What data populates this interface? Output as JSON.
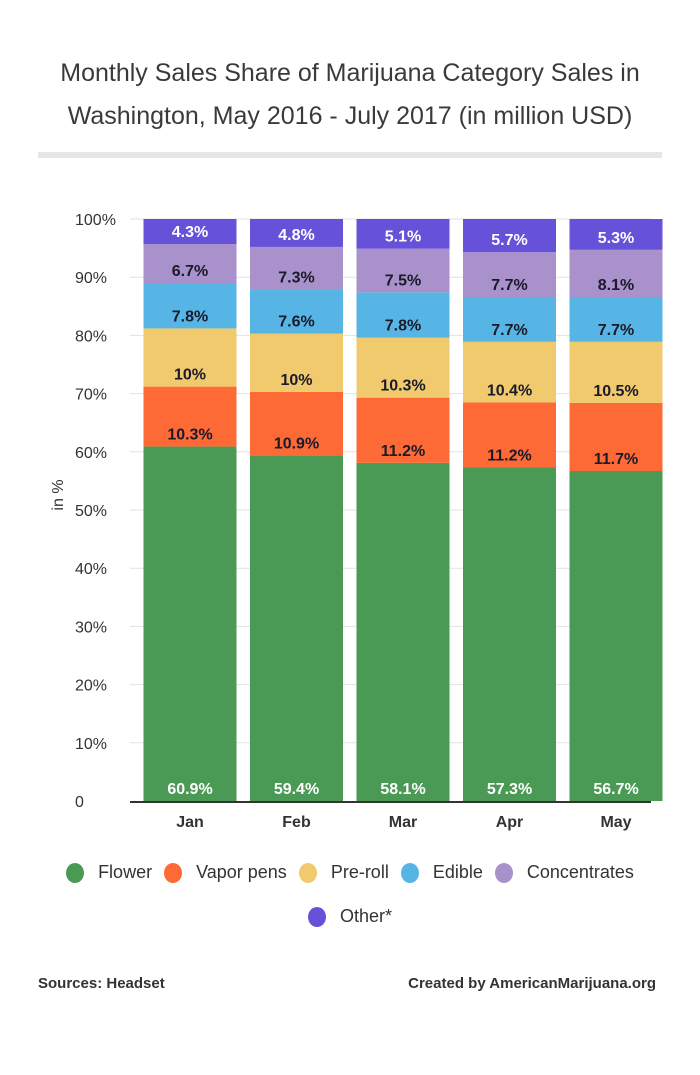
{
  "title_line1": "Monthly Sales Share of Marijuana Category Sales in",
  "title_line2": "Washington, May 2016 - July 2017 (in million USD)",
  "chart_data": {
    "type": "bar",
    "stacked": true,
    "title": "Monthly Sales Share of Marijuana Category Sales in Washington, May 2016 - July 2017 (in million USD)",
    "xlabel": "",
    "ylabel": "in %",
    "ylim": [
      0,
      100
    ],
    "yticks": [
      "0",
      "10%",
      "20%",
      "30%",
      "40%",
      "50%",
      "60%",
      "70%",
      "80%",
      "90%",
      "100%"
    ],
    "grid": true,
    "legend_position": "bottom",
    "categories": [
      "Jan",
      "Feb",
      "Mar",
      "Apr",
      "May"
    ],
    "series": [
      {
        "name": "Flower",
        "color": "#4a9a55",
        "label_color": "#ffffff",
        "values": [
          60.9,
          59.4,
          58.1,
          57.3,
          56.7
        ],
        "labels": [
          "60.9%",
          "59.4%",
          "58.1%",
          "57.3%",
          "56.7%"
        ]
      },
      {
        "name": "Vapor pens",
        "color": "#fd6a36",
        "label_color": "#1a1a2a",
        "values": [
          10.3,
          10.9,
          11.2,
          11.2,
          11.7
        ],
        "labels": [
          "10.3%",
          "10.9%",
          "11.2%",
          "11.2%",
          "11.7%"
        ]
      },
      {
        "name": "Pre-roll",
        "color": "#f0ca6c",
        "label_color": "#1a1a2a",
        "values": [
          10,
          10,
          10.3,
          10.4,
          10.5
        ],
        "labels": [
          "10%",
          "10%",
          "10.3%",
          "10.4%",
          "10.5%"
        ]
      },
      {
        "name": "Edible",
        "color": "#57b5e6",
        "label_color": "#1a1a2a",
        "values": [
          7.8,
          7.6,
          7.8,
          7.7,
          7.7
        ],
        "labels": [
          "7.8%",
          "7.6%",
          "7.8%",
          "7.7%",
          "7.7%"
        ]
      },
      {
        "name": "Concentrates",
        "color": "#a991cb",
        "label_color": "#1a1a2a",
        "values": [
          6.7,
          7.3,
          7.5,
          7.7,
          8.1
        ],
        "labels": [
          "6.7%",
          "7.3%",
          "7.5%",
          "7.7%",
          "8.1%"
        ]
      },
      {
        "name": "Other*",
        "color": "#6552d9",
        "label_color": "#ffffff",
        "values": [
          4.3,
          4.8,
          5.1,
          5.7,
          5.3
        ],
        "labels": [
          "4.3%",
          "4.8%",
          "5.1%",
          "5.7%",
          "5.3%"
        ]
      }
    ]
  },
  "footer": {
    "source": "Sources: Headset",
    "credit": "Created by AmericanMarijuana.org"
  }
}
